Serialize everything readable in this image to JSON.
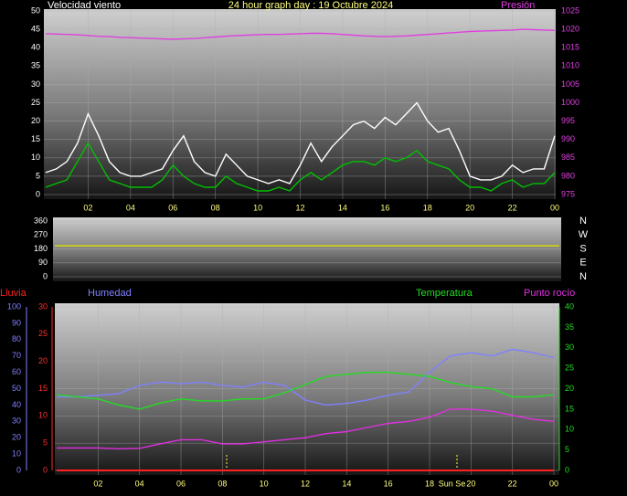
{
  "chart_data": [
    {
      "type": "line",
      "title": "24 hour graph day : 19 Octubre 2024",
      "y_label": "Velocidad viento",
      "x": [
        0,
        0.5,
        1,
        1.5,
        2,
        2.5,
        3,
        3.5,
        4,
        4.5,
        5,
        5.5,
        6,
        6.5,
        7,
        7.5,
        8,
        8.5,
        9,
        9.5,
        10,
        10.5,
        11,
        11.5,
        12,
        12.5,
        13,
        13.5,
        14,
        14.5,
        15,
        15.5,
        16,
        16.5,
        17,
        17.5,
        18,
        18.5,
        19,
        19.5,
        20,
        20.5,
        21,
        21.5,
        22,
        22.5,
        23,
        23.5,
        24
      ],
      "series": [
        {
          "color": "#ffffff",
          "values": [
            6,
            7,
            9,
            14,
            22,
            16,
            9,
            6,
            5,
            5,
            6,
            7,
            12,
            16,
            9,
            6,
            5,
            11,
            8,
            5,
            4,
            3,
            4,
            3,
            8,
            14,
            9,
            13,
            16,
            19,
            20,
            18,
            21,
            19,
            22,
            25,
            20,
            17,
            18,
            12,
            5,
            4,
            4,
            5,
            8,
            6,
            7,
            7,
            16
          ]
        },
        {
          "color": "#00c000",
          "values": [
            2,
            3,
            4,
            9,
            14,
            9,
            4,
            3,
            2,
            2,
            2,
            4,
            8,
            5,
            3,
            2,
            2,
            5,
            3,
            2,
            1,
            1,
            2,
            1,
            4,
            6,
            4,
            6,
            8,
            9,
            9,
            8,
            10,
            9,
            10,
            12,
            9,
            8,
            7,
            4,
            2,
            2,
            1,
            3,
            4,
            2,
            3,
            3,
            6
          ]
        },
        {
          "name": "Presión",
          "color": "#e040e0",
          "axis": "y2",
          "values": [
            1018.8,
            1018.7,
            1018.6,
            1018.5,
            1018.3,
            1018.1,
            1018.0,
            1017.8,
            1017.7,
            1017.6,
            1017.5,
            1017.4,
            1017.3,
            1017.4,
            1017.5,
            1017.7,
            1017.9,
            1018.1,
            1018.3,
            1018.4,
            1018.5,
            1018.6,
            1018.6,
            1018.7,
            1018.8,
            1018.9,
            1018.9,
            1018.8,
            1018.6,
            1018.4,
            1018.2,
            1018.1,
            1018.0,
            1018.1,
            1018.2,
            1018.4,
            1018.6,
            1018.8,
            1019.0,
            1019.2,
            1019.4,
            1019.5,
            1019.6,
            1019.7,
            1019.8,
            1020.0,
            1019.9,
            1019.8,
            1019.7
          ]
        }
      ],
      "xlim": [
        0,
        24
      ],
      "xticks": [
        {
          "value": 2,
          "label": "02"
        },
        {
          "value": 4,
          "label": "04"
        },
        {
          "value": 6,
          "label": "06"
        },
        {
          "value": 8,
          "label": "08"
        },
        10,
        12,
        14,
        16,
        18,
        20,
        22,
        {
          "value": 24,
          "label": "00"
        }
      ],
      "ylim": [
        0,
        50
      ],
      "yticks": [
        0,
        5,
        10,
        15,
        20,
        25,
        30,
        35,
        40,
        45,
        50
      ],
      "y2lim": [
        975,
        1025
      ],
      "y2ticks": [
        975,
        980,
        985,
        990,
        995,
        1000,
        1005,
        1010,
        1015,
        1020,
        1025
      ],
      "grid": true
    },
    {
      "type": "line",
      "x": [
        0,
        24
      ],
      "series": [
        {
          "color": "#e0e000",
          "values": [
            200,
            200
          ]
        }
      ],
      "xlim": [
        0,
        24
      ],
      "ylim": [
        0,
        360
      ],
      "yticks": [
        0,
        90,
        180,
        270,
        360
      ],
      "y2lim": [
        0,
        360
      ],
      "y2ticks": [
        {
          "value": 360,
          "label": "N"
        },
        {
          "value": 270,
          "label": "W"
        },
        {
          "value": 180,
          "label": "S"
        },
        {
          "value": 90,
          "label": "E"
        },
        {
          "value": 0,
          "label": "N"
        }
      ],
      "grid": true
    },
    {
      "type": "line",
      "x": [
        0,
        1,
        2,
        3,
        4,
        5,
        6,
        7,
        8,
        9,
        10,
        11,
        12,
        13,
        14,
        15,
        16,
        17,
        18,
        19,
        20,
        21,
        22,
        23,
        24
      ],
      "series": [
        {
          "name": "Lluvia",
          "color": "#ff2020",
          "values": [
            0,
            0,
            0,
            0,
            0,
            0,
            0,
            0,
            0,
            0,
            0,
            0,
            0,
            0,
            0,
            0,
            0,
            0,
            0,
            0,
            0,
            0,
            0,
            0,
            0
          ]
        },
        {
          "name": "Humedad",
          "color": "#8080ff",
          "axis": "y3",
          "values": [
            45,
            45,
            46,
            47,
            52,
            54,
            53,
            54,
            52,
            51,
            54,
            52,
            43,
            40,
            41,
            43,
            46,
            48,
            60,
            70,
            72,
            70,
            74,
            72,
            69
          ]
        },
        {
          "name": "Temperatura",
          "color": "#22dd22",
          "axis": "y2",
          "values": [
            18.5,
            18,
            17.5,
            16,
            15,
            16.5,
            17.5,
            17,
            17,
            17.5,
            17.5,
            19,
            21,
            23,
            23.5,
            24,
            24,
            23.5,
            23,
            21.5,
            20.5,
            20,
            18,
            18,
            18.5
          ]
        },
        {
          "name": "Punto rocío",
          "color": "#e030e0",
          "axis": "y2",
          "values": [
            5.5,
            5.5,
            5.5,
            5.3,
            5.4,
            6.5,
            7.5,
            7.5,
            6.5,
            6.5,
            7,
            7.5,
            8,
            9,
            9.5,
            10.5,
            11.5,
            12,
            13,
            15,
            15,
            14.5,
            13.5,
            12.5,
            12
          ]
        }
      ],
      "annotation": "Sun Se",
      "xlim": [
        0,
        24
      ],
      "xticks": [
        {
          "value": 2,
          "label": "02"
        },
        {
          "value": 4,
          "label": "04"
        },
        {
          "value": 6,
          "label": "06"
        },
        {
          "value": 8,
          "label": "08"
        },
        10,
        12,
        14,
        16,
        18,
        20,
        22,
        {
          "value": 24,
          "label": "00"
        }
      ],
      "ylim": [
        0,
        30
      ],
      "yticks": [
        0,
        5,
        10,
        15,
        20,
        25,
        30
      ],
      "y2lim": [
        0,
        40
      ],
      "y2ticks": [
        0,
        5,
        10,
        15,
        20,
        25,
        30,
        35,
        40
      ],
      "y3lim": [
        0,
        100
      ],
      "y3ticks": [
        0,
        10,
        20,
        30,
        40,
        50,
        60,
        70,
        80,
        90,
        100
      ],
      "grid": true
    }
  ]
}
